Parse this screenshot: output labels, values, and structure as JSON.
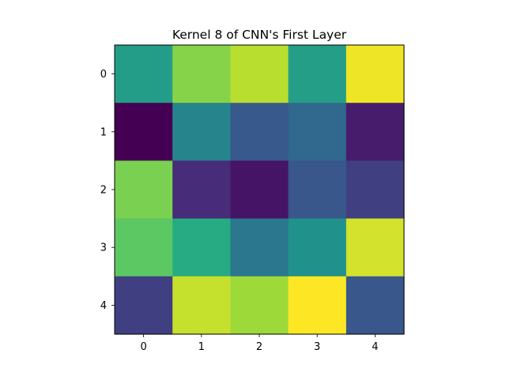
{
  "chart_data": {
    "type": "heatmap",
    "title": "Kernel 8 of CNN's First Layer",
    "xlabel": "",
    "ylabel": "",
    "x_ticks": [
      "0",
      "1",
      "2",
      "3",
      "4"
    ],
    "y_ticks": [
      "0",
      "1",
      "2",
      "3",
      "4"
    ],
    "colormap": "viridis",
    "value_range": [
      0,
      1
    ],
    "grid": false,
    "values": [
      [
        0.55,
        0.82,
        0.9,
        0.56,
        0.98
      ],
      [
        0.0,
        0.45,
        0.28,
        0.34,
        0.1
      ],
      [
        0.8,
        0.15,
        0.07,
        0.27,
        0.2
      ],
      [
        0.75,
        0.62,
        0.4,
        0.5,
        0.94
      ],
      [
        0.2,
        0.92,
        0.86,
        1.0,
        0.27
      ]
    ]
  }
}
